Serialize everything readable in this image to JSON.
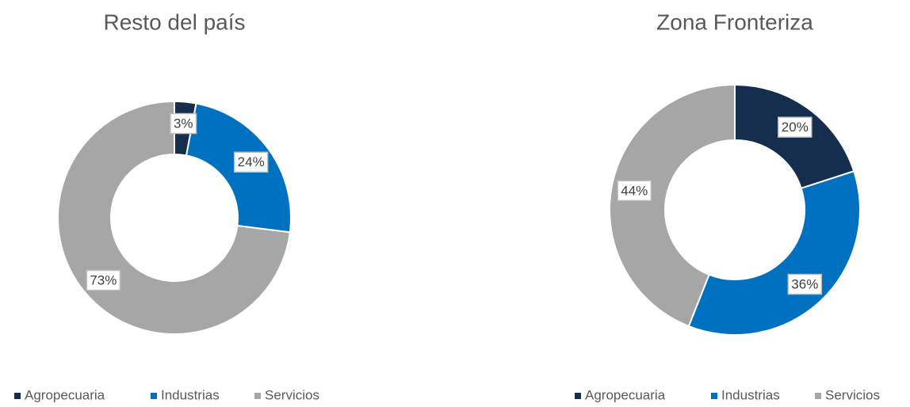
{
  "chart_data": [
    {
      "type": "donut",
      "title": "Resto del país",
      "categories": [
        "Agropecuaria",
        "Industrias",
        "Servicios"
      ],
      "values": [
        3,
        24,
        73
      ],
      "value_labels": [
        "3%",
        "24%",
        "73%"
      ],
      "colors": [
        "#152e4d",
        "#0070c0",
        "#a6a6a6"
      ],
      "legend": "bottom"
    },
    {
      "type": "donut",
      "title": "Zona Fronteriza",
      "categories": [
        "Agropecuaria",
        "Industrias",
        "Servicios"
      ],
      "values": [
        20,
        36,
        44
      ],
      "value_labels": [
        "20%",
        "36%",
        "44%"
      ],
      "colors": [
        "#152e4d",
        "#0070c0",
        "#a6a6a6"
      ],
      "legend": "bottom"
    }
  ]
}
